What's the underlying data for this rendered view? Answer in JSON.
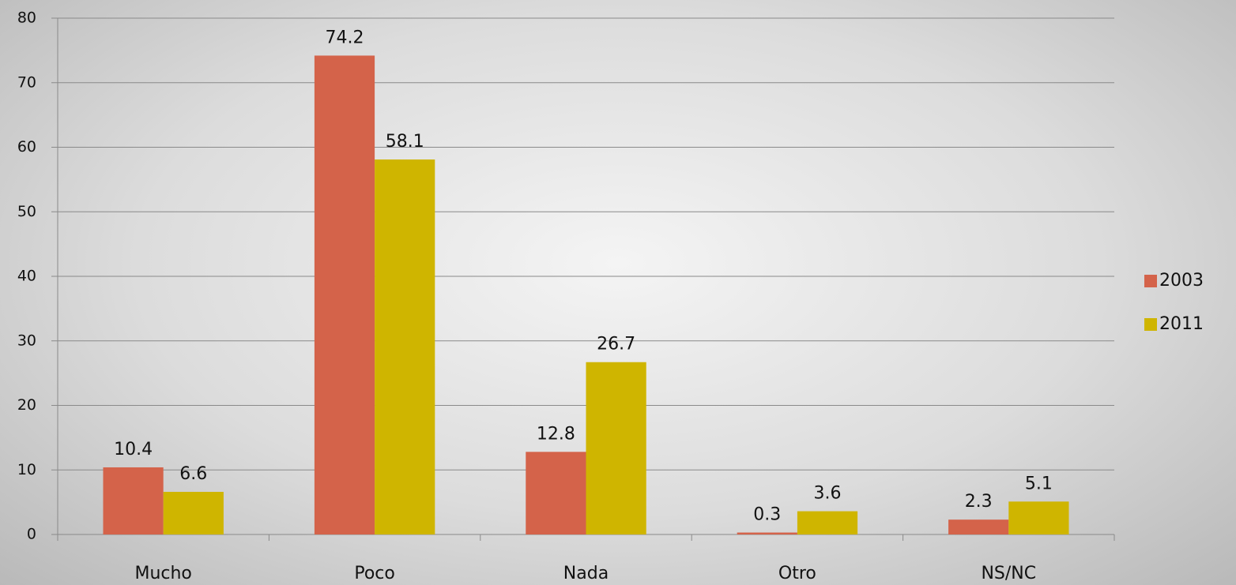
{
  "chart_data": {
    "type": "bar",
    "categories": [
      "Mucho",
      "Poco",
      "Nada",
      "Otro",
      "NS/NC"
    ],
    "series": [
      {
        "name": "2003",
        "color": "#d4634a",
        "values": [
          10.4,
          74.2,
          12.8,
          0.3,
          2.3
        ]
      },
      {
        "name": "2011",
        "color": "#cfb500",
        "values": [
          6.6,
          58.1,
          26.7,
          3.6,
          5.1
        ]
      }
    ],
    "ylim": [
      0,
      80
    ],
    "yticks": [
      0,
      10,
      20,
      30,
      40,
      50,
      60,
      70,
      80
    ],
    "grid": true,
    "legend": "right"
  }
}
